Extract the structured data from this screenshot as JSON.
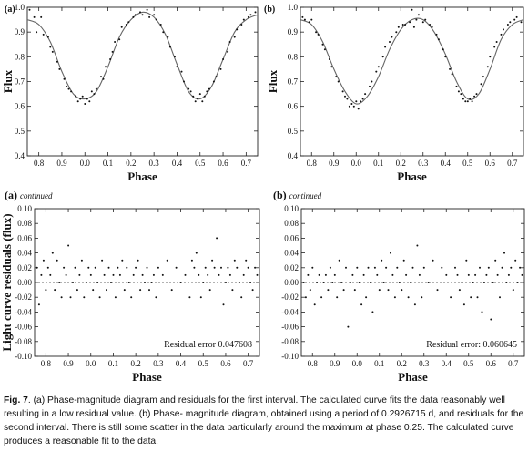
{
  "panels": {
    "a_top": {
      "tag": "(a)"
    },
    "b_top": {
      "tag": "(b)"
    },
    "a_bottom": {
      "tag": "(a)",
      "tag_suffix": "continued",
      "annotation": "Residual error 0.047608"
    },
    "b_bottom": {
      "tag": "(b)",
      "tag_suffix": "continued",
      "annotation": "Residual error: 0.060645"
    }
  },
  "caption": {
    "fig_label": "Fig. 7",
    "text": ". (a) Phase-magnitude diagram and residuals for the first interval. The calculated curve fits the data reasonably well resulting in a low residual value. (b) Phase- magnitude diagram, obtained using a period of 0.2926715 d, and residuals for the second interval. There is still some scatter in the data particularly around the maximum at  phase 0.25. The calculated curve produces a reasonable fit to the data."
  },
  "chart_data": [
    {
      "id": "a_top",
      "type": "scatter",
      "xlabel": "Phase",
      "ylabel": "Flux",
      "xlim": [
        0.75,
        1.75
      ],
      "ylim": [
        0.4,
        1.0
      ],
      "xticks": [
        0.8,
        0.9,
        1.0,
        1.1,
        1.2,
        1.3,
        1.4,
        1.5,
        1.6,
        1.7
      ],
      "xtick_labels": [
        "0.8",
        "0.9",
        "0.0",
        "0.1",
        "0.2",
        "0.3",
        "0.4",
        "0.5",
        "0.6",
        "0.7"
      ],
      "yticks": [
        0.4,
        0.5,
        0.6,
        0.7,
        0.8,
        0.9,
        1.0
      ],
      "ytick_labels": [
        "0.4",
        "0.5",
        "0.6",
        "0.7",
        "0.8",
        "0.9",
        "1.0"
      ],
      "grid": false,
      "fit_curve": {
        "x": [
          0.75,
          0.8,
          0.85,
          0.9,
          0.95,
          1.0,
          1.05,
          1.1,
          1.15,
          1.2,
          1.25,
          1.3,
          1.35,
          1.4,
          1.45,
          1.5,
          1.55,
          1.6,
          1.65,
          1.7,
          1.75
        ],
        "y": [
          0.95,
          0.93,
          0.86,
          0.74,
          0.65,
          0.63,
          0.66,
          0.76,
          0.88,
          0.95,
          0.98,
          0.96,
          0.89,
          0.77,
          0.66,
          0.63,
          0.68,
          0.79,
          0.9,
          0.95,
          0.97
        ]
      },
      "points": {
        "x": [
          0.76,
          0.78,
          0.79,
          0.81,
          0.82,
          0.84,
          0.85,
          0.86,
          0.88,
          0.89,
          0.91,
          0.92,
          0.93,
          0.94,
          0.96,
          0.97,
          0.98,
          0.99,
          1.0,
          1.01,
          1.02,
          1.03,
          1.04,
          1.05,
          1.07,
          1.08,
          1.09,
          1.11,
          1.12,
          1.13,
          1.15,
          1.16,
          1.18,
          1.19,
          1.21,
          1.22,
          1.24,
          1.25,
          1.27,
          1.28,
          1.3,
          1.31,
          1.33,
          1.34,
          1.36,
          1.37,
          1.39,
          1.4,
          1.42,
          1.43,
          1.45,
          1.46,
          1.47,
          1.48,
          1.49,
          1.5,
          1.51,
          1.52,
          1.53,
          1.54,
          1.56,
          1.57,
          1.59,
          1.6,
          1.62,
          1.63,
          1.65,
          1.66,
          1.68,
          1.69,
          1.71,
          1.72,
          1.74
        ],
        "y": [
          0.99,
          0.96,
          0.9,
          0.96,
          0.89,
          0.88,
          0.84,
          0.82,
          0.78,
          0.75,
          0.71,
          0.68,
          0.67,
          0.66,
          0.64,
          0.62,
          0.63,
          0.64,
          0.61,
          0.63,
          0.62,
          0.66,
          0.65,
          0.67,
          0.72,
          0.71,
          0.76,
          0.79,
          0.82,
          0.86,
          0.87,
          0.92,
          0.93,
          0.94,
          0.96,
          0.97,
          0.98,
          0.97,
          0.99,
          0.96,
          0.97,
          0.95,
          0.93,
          0.9,
          0.88,
          0.84,
          0.8,
          0.76,
          0.74,
          0.7,
          0.67,
          0.66,
          0.64,
          0.62,
          0.63,
          0.65,
          0.62,
          0.64,
          0.66,
          0.67,
          0.7,
          0.72,
          0.75,
          0.79,
          0.82,
          0.86,
          0.88,
          0.91,
          0.93,
          0.95,
          0.96,
          0.97,
          0.98
        ]
      }
    },
    {
      "id": "b_top",
      "type": "scatter",
      "xlabel": "Phase",
      "ylabel": "Flux",
      "xlim": [
        0.75,
        1.75
      ],
      "ylim": [
        0.4,
        1.0
      ],
      "xticks": [
        0.8,
        0.9,
        1.0,
        1.1,
        1.2,
        1.3,
        1.4,
        1.5,
        1.6,
        1.7
      ],
      "xtick_labels": [
        "0.8",
        "0.9",
        "0.0",
        "0.1",
        "0.2",
        "0.3",
        "0.4",
        "0.5",
        "0.6",
        "0.7"
      ],
      "yticks": [
        0.4,
        0.5,
        0.6,
        0.7,
        0.8,
        0.9,
        1.0
      ],
      "ytick_labels": [
        "0.4",
        "0.5",
        "0.6",
        "0.7",
        "0.8",
        "0.9",
        "1.0"
      ],
      "grid": false,
      "fit_curve": {
        "x": [
          0.75,
          0.8,
          0.85,
          0.9,
          0.95,
          1.0,
          1.05,
          1.1,
          1.15,
          1.2,
          1.25,
          1.3,
          1.35,
          1.4,
          1.45,
          1.5,
          1.55,
          1.6,
          1.65,
          1.7,
          1.75
        ],
        "y": [
          0.95,
          0.93,
          0.86,
          0.75,
          0.66,
          0.61,
          0.64,
          0.72,
          0.83,
          0.91,
          0.95,
          0.95,
          0.9,
          0.81,
          0.7,
          0.63,
          0.65,
          0.75,
          0.87,
          0.93,
          0.95
        ]
      },
      "points": {
        "x": [
          0.76,
          0.77,
          0.79,
          0.8,
          0.82,
          0.83,
          0.85,
          0.86,
          0.88,
          0.89,
          0.91,
          0.92,
          0.94,
          0.95,
          0.96,
          0.97,
          0.98,
          0.99,
          1.0,
          1.01,
          1.02,
          1.03,
          1.04,
          1.06,
          1.07,
          1.09,
          1.1,
          1.12,
          1.13,
          1.15,
          1.16,
          1.18,
          1.19,
          1.21,
          1.22,
          1.24,
          1.25,
          1.26,
          1.27,
          1.28,
          1.3,
          1.31,
          1.33,
          1.34,
          1.36,
          1.37,
          1.39,
          1.4,
          1.42,
          1.43,
          1.45,
          1.46,
          1.47,
          1.48,
          1.49,
          1.5,
          1.51,
          1.52,
          1.53,
          1.54,
          1.56,
          1.57,
          1.59,
          1.6,
          1.62,
          1.63,
          1.65,
          1.66,
          1.68,
          1.69,
          1.71,
          1.72,
          1.74
        ],
        "y": [
          0.96,
          0.95,
          0.94,
          0.95,
          0.9,
          0.89,
          0.85,
          0.83,
          0.79,
          0.76,
          0.72,
          0.7,
          0.66,
          0.64,
          0.63,
          0.6,
          0.61,
          0.6,
          0.62,
          0.59,
          0.62,
          0.63,
          0.65,
          0.68,
          0.7,
          0.74,
          0.76,
          0.8,
          0.84,
          0.86,
          0.88,
          0.9,
          0.92,
          0.93,
          0.93,
          0.94,
          0.99,
          0.92,
          0.95,
          0.97,
          0.94,
          0.95,
          0.93,
          0.92,
          0.89,
          0.87,
          0.83,
          0.8,
          0.75,
          0.73,
          0.68,
          0.66,
          0.65,
          0.63,
          0.62,
          0.62,
          0.63,
          0.62,
          0.64,
          0.65,
          0.69,
          0.72,
          0.76,
          0.8,
          0.84,
          0.86,
          0.89,
          0.91,
          0.93,
          0.94,
          0.95,
          0.96,
          0.94
        ]
      }
    },
    {
      "id": "a_bottom",
      "type": "scatter",
      "xlabel": "Phase",
      "ylabel": "Light curve residuals (flux)",
      "xlim": [
        0.75,
        1.75
      ],
      "ylim": [
        -0.1,
        0.1
      ],
      "xticks": [
        0.8,
        0.9,
        1.0,
        1.1,
        1.2,
        1.3,
        1.4,
        1.5,
        1.6,
        1.7
      ],
      "xtick_labels": [
        "0.8",
        "0.9",
        "0.0",
        "0.1",
        "0.2",
        "0.3",
        "0.4",
        "0.5",
        "0.6",
        "0.7"
      ],
      "yticks": [
        -0.1,
        -0.08,
        -0.06,
        -0.04,
        -0.02,
        0.0,
        0.02,
        0.04,
        0.06,
        0.08,
        0.1
      ],
      "ytick_labels": [
        "-0.10",
        "-0.08",
        "-0.06",
        "-0.04",
        "-0.02",
        "0.00",
        "0.02",
        "0.04",
        "0.06",
        "0.08",
        "0.10"
      ],
      "grid": false,
      "zero_line": 0.0,
      "points": {
        "x": [
          0.76,
          0.77,
          0.78,
          0.79,
          0.8,
          0.81,
          0.82,
          0.83,
          0.84,
          0.85,
          0.86,
          0.87,
          0.88,
          0.89,
          0.9,
          0.91,
          0.92,
          0.93,
          0.94,
          0.95,
          0.96,
          0.97,
          0.98,
          0.99,
          1.0,
          1.01,
          1.02,
          1.03,
          1.04,
          1.05,
          1.06,
          1.07,
          1.08,
          1.09,
          1.1,
          1.11,
          1.12,
          1.13,
          1.14,
          1.15,
          1.16,
          1.17,
          1.18,
          1.19,
          1.2,
          1.21,
          1.22,
          1.23,
          1.24,
          1.25,
          1.26,
          1.27,
          1.28,
          1.29,
          1.3,
          1.32,
          1.34,
          1.36,
          1.38,
          1.4,
          1.42,
          1.44,
          1.45,
          1.46,
          1.47,
          1.48,
          1.49,
          1.5,
          1.51,
          1.52,
          1.53,
          1.54,
          1.55,
          1.56,
          1.57,
          1.58,
          1.59,
          1.6,
          1.61,
          1.62,
          1.63,
          1.64,
          1.65,
          1.66,
          1.67,
          1.68,
          1.69,
          1.7,
          1.71,
          1.72,
          1.73,
          1.74
        ],
        "y": [
          0.02,
          -0.03,
          0.01,
          0.03,
          -0.01,
          0.02,
          0.01,
          0.04,
          -0.01,
          0.03,
          0.0,
          -0.02,
          0.02,
          0.01,
          0.05,
          -0.02,
          0.0,
          0.02,
          -0.01,
          0.01,
          0.03,
          -0.02,
          0.0,
          0.02,
          0.01,
          -0.01,
          0.02,
          0.0,
          -0.02,
          0.03,
          0.01,
          -0.01,
          0.02,
          0.0,
          0.01,
          -0.02,
          0.02,
          0.01,
          0.03,
          -0.01,
          0.02,
          0.0,
          -0.02,
          0.01,
          0.02,
          0.03,
          -0.01,
          0.01,
          0.0,
          0.02,
          -0.01,
          0.0,
          0.01,
          -0.02,
          0.02,
          0.01,
          0.03,
          -0.01,
          0.02,
          0.0,
          0.01,
          -0.02,
          0.03,
          0.02,
          0.04,
          0.01,
          -0.02,
          0.0,
          0.02,
          0.01,
          -0.01,
          0.03,
          0.02,
          0.06,
          0.01,
          0.02,
          -0.03,
          0.0,
          0.02,
          0.01,
          -0.01,
          0.03,
          0.02,
          0.0,
          -0.02,
          0.01,
          0.03,
          0.02,
          0.0,
          -0.01,
          0.02,
          0.01
        ]
      }
    },
    {
      "id": "b_bottom",
      "type": "scatter",
      "xlabel": "Phase",
      "ylabel": "",
      "xlim": [
        0.75,
        1.75
      ],
      "ylim": [
        -0.1,
        0.1
      ],
      "xticks": [
        0.8,
        0.9,
        1.0,
        1.1,
        1.2,
        1.3,
        1.4,
        1.5,
        1.6,
        1.7
      ],
      "xtick_labels": [
        "0.8",
        "0.9",
        "0.0",
        "0.1",
        "0.2",
        "0.3",
        "0.4",
        "0.5",
        "0.6",
        "0.7"
      ],
      "yticks": [
        -0.1,
        -0.08,
        -0.06,
        -0.04,
        -0.02,
        0.0,
        0.02,
        0.04,
        0.06,
        0.08,
        0.1
      ],
      "ytick_labels": [
        "-0.10",
        "-0.08",
        "-0.06",
        "-0.04",
        "-0.02",
        "0.00",
        "0.02",
        "0.04",
        "0.06",
        "0.08",
        "0.10"
      ],
      "grid": false,
      "zero_line": 0.0,
      "points": {
        "x": [
          0.76,
          0.77,
          0.78,
          0.79,
          0.8,
          0.81,
          0.82,
          0.83,
          0.84,
          0.85,
          0.86,
          0.87,
          0.88,
          0.89,
          0.9,
          0.91,
          0.92,
          0.93,
          0.94,
          0.95,
          0.96,
          0.97,
          0.98,
          0.99,
          1.0,
          1.01,
          1.02,
          1.03,
          1.04,
          1.05,
          1.06,
          1.07,
          1.08,
          1.09,
          1.1,
          1.11,
          1.12,
          1.13,
          1.14,
          1.15,
          1.16,
          1.17,
          1.18,
          1.19,
          1.2,
          1.21,
          1.22,
          1.23,
          1.24,
          1.25,
          1.26,
          1.27,
          1.28,
          1.29,
          1.3,
          1.32,
          1.34,
          1.36,
          1.38,
          1.4,
          1.42,
          1.44,
          1.45,
          1.46,
          1.47,
          1.48,
          1.49,
          1.5,
          1.51,
          1.52,
          1.53,
          1.54,
          1.55,
          1.56,
          1.57,
          1.58,
          1.59,
          1.6,
          1.61,
          1.62,
          1.63,
          1.64,
          1.65,
          1.66,
          1.67,
          1.68,
          1.69,
          1.7,
          1.71,
          1.72,
          1.73,
          1.74
        ],
        "y": [
          0.0,
          -0.02,
          0.01,
          -0.01,
          0.02,
          -0.03,
          0.0,
          0.01,
          -0.02,
          0.0,
          0.01,
          -0.01,
          0.02,
          0.0,
          0.01,
          -0.02,
          0.03,
          0.0,
          -0.01,
          0.02,
          -0.06,
          0.0,
          0.01,
          -0.01,
          0.02,
          0.0,
          -0.03,
          0.01,
          -0.02,
          0.02,
          0.0,
          -0.04,
          0.02,
          0.01,
          -0.01,
          0.03,
          0.0,
          0.02,
          -0.01,
          0.04,
          0.01,
          -0.02,
          0.02,
          0.0,
          -0.01,
          0.03,
          0.01,
          -0.02,
          0.0,
          0.02,
          -0.03,
          0.05,
          0.01,
          -0.02,
          0.02,
          0.0,
          0.03,
          -0.01,
          0.02,
          0.01,
          -0.02,
          0.02,
          0.01,
          -0.01,
          0.0,
          -0.03,
          0.03,
          0.01,
          -0.02,
          0.0,
          0.01,
          -0.02,
          0.02,
          -0.04,
          0.0,
          0.01,
          0.02,
          -0.05,
          0.0,
          0.03,
          0.01,
          -0.02,
          0.02,
          0.04,
          0.0,
          0.01,
          0.02,
          -0.01,
          0.03,
          0.0,
          0.02,
          0.01
        ]
      }
    }
  ]
}
